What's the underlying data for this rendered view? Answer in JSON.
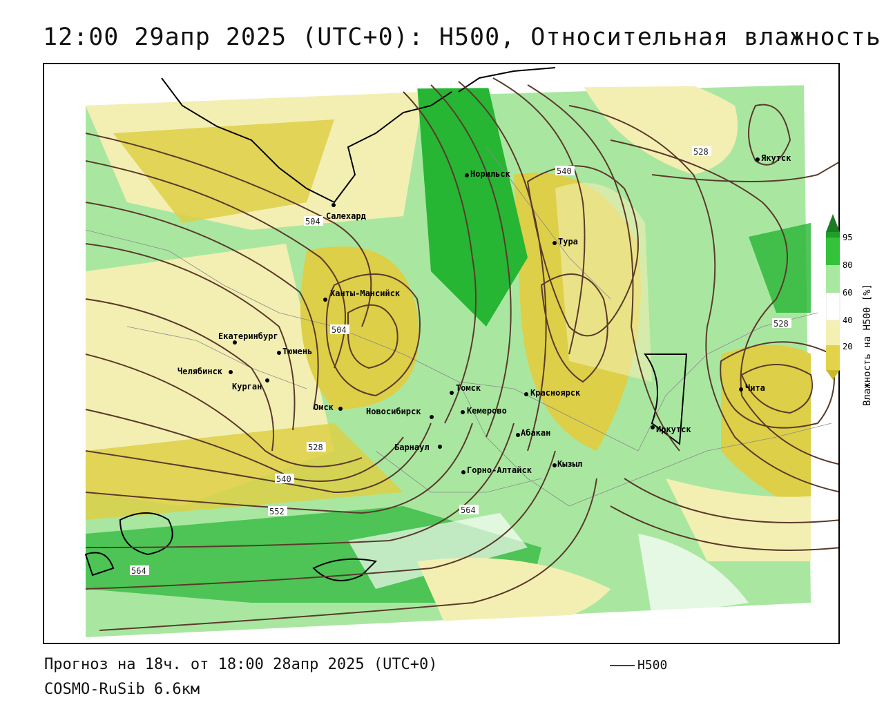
{
  "title": "12:00 29апр 2025 (UTC+0): H500, Относительная влажность",
  "footer": {
    "forecast": "Прогноз на 18ч. от 18:00 28апр 2025 (UTC+0)",
    "model": "COSMO-RuSib 6.6км",
    "h500_key": "H500"
  },
  "legend": {
    "label": "Влажность на H500 [%]",
    "ticks": [
      "95",
      "80",
      "60",
      "40",
      "20"
    ],
    "colors": {
      "95": "#1f9e2a",
      "80": "#33c23a",
      "70": "#a8e8a0",
      "60": "#ffffff",
      "50": "#f4f0b4",
      "30": "#e3d34a",
      "20": "#c9b82a"
    }
  },
  "colors": {
    "contour": "#5a3a2a",
    "coast": "#000000",
    "border": "#888888",
    "green_dark": "#27b534",
    "green_light": "#a9e7a1",
    "yellow_light": "#f3efb3",
    "yellow_dark": "#ddcf47"
  },
  "cities": [
    {
      "name": "Якутск"
    },
    {
      "name": "Норильск"
    },
    {
      "name": "Салехард"
    },
    {
      "name": "Тура"
    },
    {
      "name": "Ханты-Мансийск"
    },
    {
      "name": "Екатеринбург"
    },
    {
      "name": "Тюмень"
    },
    {
      "name": "Челябинск"
    },
    {
      "name": "Курган"
    },
    {
      "name": "Омск"
    },
    {
      "name": "Новосибирск"
    },
    {
      "name": "Томск"
    },
    {
      "name": "Кемерово"
    },
    {
      "name": "Красноярск"
    },
    {
      "name": "Барнаул"
    },
    {
      "name": "Абакан"
    },
    {
      "name": "Горно-Алтайск"
    },
    {
      "name": "Кызыл"
    },
    {
      "name": "Иркутск"
    },
    {
      "name": "Чита"
    }
  ],
  "contour_labels": [
    "504",
    "504",
    "528",
    "540",
    "552",
    "564",
    "564",
    "540",
    "528",
    "528"
  ]
}
